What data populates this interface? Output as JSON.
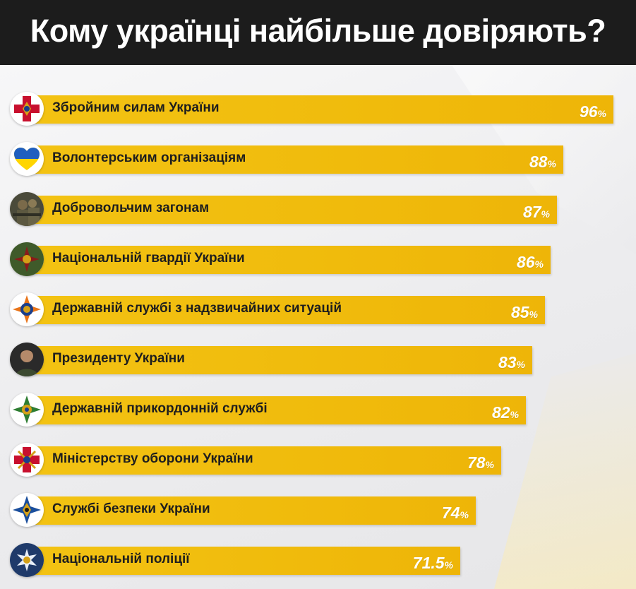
{
  "title": "Кому українці найбільше довіряють?",
  "chart_data": {
    "type": "bar",
    "orientation": "horizontal",
    "title": "Кому українці найбільше довіряють?",
    "categories": [
      "Збройним силам України",
      "Волонтерським організаціям",
      "Добровольчим загонам",
      "Національній гвардії України",
      "Державній службі з надзвичайних ситуацій",
      "Президенту України",
      "Державній прикордонній службі",
      "Міністерству оборони України",
      "Службі безпеки України",
      "Національній поліції"
    ],
    "value_labels": [
      "96",
      "88",
      "87",
      "86",
      "85",
      "83",
      "82",
      "78",
      "74",
      "71.5"
    ],
    "values": [
      96,
      88,
      87,
      86,
      85,
      83,
      82,
      78,
      74,
      71.5
    ],
    "unit": "%",
    "xlim": [
      0,
      100
    ],
    "icons": [
      "armed-forces-emblem-icon",
      "heart-ukraine-flag-icon",
      "volunteer-soldiers-icon",
      "national-guard-emblem-icon",
      "emergency-service-emblem-icon",
      "president-portrait-icon",
      "border-guard-emblem-icon",
      "defense-ministry-emblem-icon",
      "security-service-emblem-icon",
      "national-police-emblem-icon"
    ],
    "bar_color": "#f0bb0c",
    "title_bar_color": "#1c1c1c"
  }
}
